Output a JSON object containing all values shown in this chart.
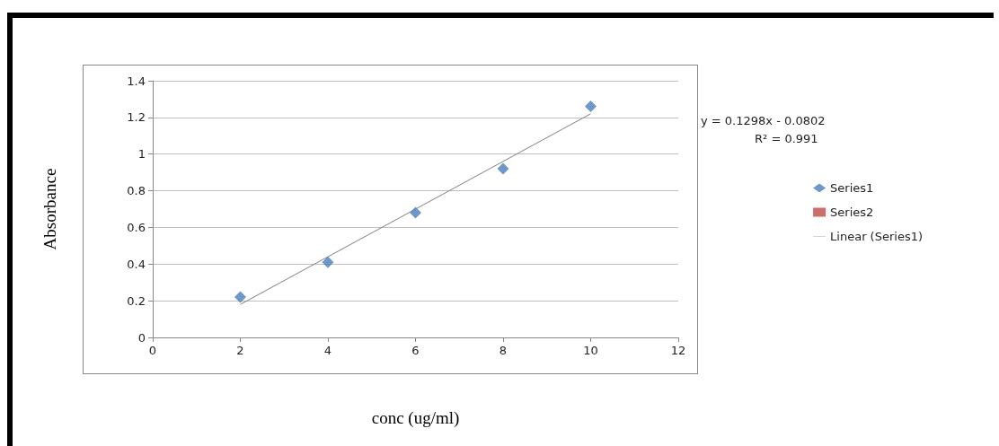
{
  "chart_data": {
    "type": "scatter",
    "ylabel": "Absorbance",
    "xlabel": "conc (ug/ml)",
    "xlim": [
      0,
      12
    ],
    "xticks": [
      0,
      2,
      4,
      6,
      8,
      10,
      12
    ],
    "ylim": [
      0,
      1.4
    ],
    "yticks": [
      0,
      0.2,
      0.4,
      0.6,
      0.8,
      1,
      1.2,
      1.4
    ],
    "grid": "y",
    "legend": "right",
    "annotations": [
      "y = 0.1298x - 0.0802",
      "R² = 0.991"
    ],
    "series": [
      {
        "name": "Series1",
        "color": "#4a7ebb",
        "marker": "diamond",
        "x": [
          2,
          4,
          6,
          8,
          10
        ],
        "values": [
          0.22,
          0.41,
          0.68,
          0.92,
          1.26
        ]
      },
      {
        "name": "Series2",
        "type": "scatter",
        "color": "#be4b48",
        "marker": "square"
      },
      {
        "name": "Linear (Series1)",
        "type": "line",
        "color": "#808080",
        "marker": "none",
        "x": [
          2,
          10
        ],
        "values": [
          0.18,
          1.22
        ]
      }
    ]
  }
}
